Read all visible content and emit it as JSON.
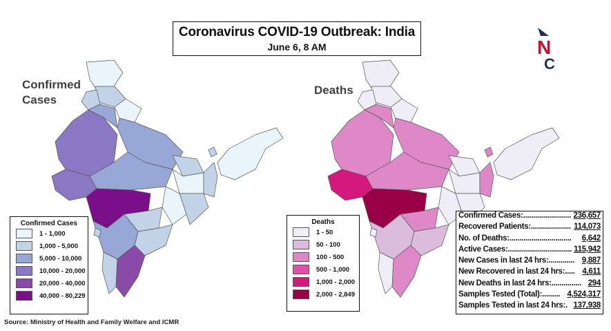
{
  "header": {
    "title": "Coronavirus COVID-19 Outbreak: India",
    "subtitle": "June 6, 8 AM"
  },
  "logo": {
    "letters": "NC",
    "accent_color": "#c8102e",
    "primary_color": "#1f2f5c"
  },
  "confirmed_map": {
    "label": "Confirmed Cases",
    "legend": {
      "title": "Confirmed Cases",
      "items": [
        {
          "label": "1 - 1,000",
          "color": "#eaf5fb"
        },
        {
          "label": "1,000 - 5,000",
          "color": "#c2d3e8"
        },
        {
          "label": "5,000 - 10,000",
          "color": "#98a8d6"
        },
        {
          "label": "10,000 - 20,000",
          "color": "#8a78c4"
        },
        {
          "label": "20,000 - 40,000",
          "color": "#8a4aa8"
        },
        {
          "label": "40,000 - 80,229",
          "color": "#7b0f8a"
        }
      ]
    }
  },
  "deaths_map": {
    "label": "Deaths",
    "legend": {
      "title": "Deaths",
      "items": [
        {
          "label": "1 - 50",
          "color": "#efedf5"
        },
        {
          "label": "50 - 100",
          "color": "#dcbcdc"
        },
        {
          "label": "100 - 500",
          "color": "#df88c8"
        },
        {
          "label": "500 - 1,000",
          "color": "#e150a8"
        },
        {
          "label": "1,000 - 2,000",
          "color": "#d4187e"
        },
        {
          "label": "2,000 - 2,849",
          "color": "#990045"
        }
      ]
    }
  },
  "stats": [
    {
      "label": "Confirmed Cases:........................",
      "value": "236,657"
    },
    {
      "label": "Recovered Patients:....................",
      "value": "114,073"
    },
    {
      "label": "No. of Deaths:...............................",
      "value": "6,642"
    },
    {
      "label": "Active Cases:................................",
      "value": "115,942"
    },
    {
      "label": "New Cases in last 24 hrs:.............",
      "value": "9,887"
    },
    {
      "label": "New Recovered in last 24 hrs:.....",
      "value": "4,611"
    },
    {
      "label": "New Deaths in last 24 hrs:...............",
      "value": "294"
    },
    {
      "label": "Samples Tested (Total):.........",
      "value": "4,524,317"
    },
    {
      "label": "Samples Tested in last 24 hrs:.",
      "value": "137,938"
    }
  ],
  "source": "Source: Ministry of Health and Family Welfare and ICMR"
}
